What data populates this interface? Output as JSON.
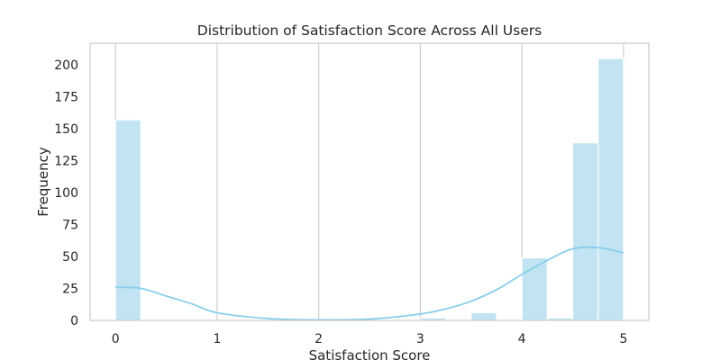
{
  "chart_data": {
    "type": "bar",
    "title": "Distribution of Satisfaction Score Across All Users",
    "xlabel": "Satisfaction Score",
    "ylabel": "Frequency",
    "xlim": [
      -0.25,
      5.25
    ],
    "ylim": [
      0,
      217
    ],
    "xticks": [
      "0",
      "1",
      "2",
      "3",
      "4",
      "5"
    ],
    "yticks": [
      "0",
      "25",
      "50",
      "75",
      "100",
      "125",
      "150",
      "175",
      "200"
    ],
    "grid": "vertical",
    "bin_width": 0.25,
    "bins": [
      {
        "start": 0.0,
        "end": 0.25,
        "count": 157
      },
      {
        "start": 3.0,
        "end": 3.25,
        "count": 2
      },
      {
        "start": 3.5,
        "end": 3.75,
        "count": 6
      },
      {
        "start": 4.0,
        "end": 4.25,
        "count": 49
      },
      {
        "start": 4.25,
        "end": 4.5,
        "count": 2
      },
      {
        "start": 4.5,
        "end": 4.75,
        "count": 139
      },
      {
        "start": 4.75,
        "end": 5.0,
        "count": 205
      }
    ],
    "kde": {
      "x": [
        0,
        0.25,
        0.5,
        0.75,
        1.0,
        1.5,
        2.0,
        2.5,
        3.0,
        3.25,
        3.5,
        3.75,
        4.0,
        4.25,
        4.5,
        4.75,
        5.0
      ],
      "y": [
        26,
        25,
        19,
        13,
        6,
        1.5,
        0.5,
        1,
        5,
        9,
        15,
        24,
        36,
        47,
        56,
        57,
        53
      ]
    },
    "colors": {
      "bar": "#c2e4f2",
      "kde": "#87ceeb",
      "grid": "#d0d0d0",
      "frame": "#cccccc"
    }
  }
}
